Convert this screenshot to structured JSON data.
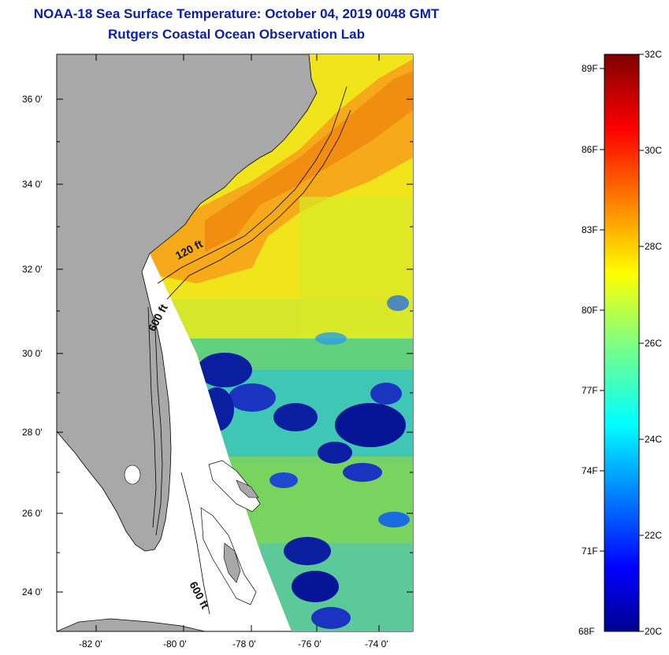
{
  "header": {
    "title": "NOAA-18 Sea Surface Temperature:  October 04, 2019 0048 GMT",
    "subtitle": "Rutgers Coastal Ocean Observation Lab"
  },
  "map": {
    "lat_labels": [
      "36 0'",
      "34 0'",
      "32 0'",
      "30 0'",
      "28 0'",
      "26 0'",
      "24 0'"
    ],
    "lon_labels": [
      "-82 0'",
      "-80 0'",
      "-78 0'",
      "-76 0'",
      "-74 0'"
    ],
    "depth_labels": [
      "120 ft",
      "600 ft",
      "600 ft"
    ],
    "land_color": "#a8a8a8",
    "ocean_nodata_color": "#ffffff"
  },
  "colorbar": {
    "fahrenheit_labels": [
      "89F",
      "86F",
      "83F",
      "80F",
      "77F",
      "74F",
      "71F",
      "68F"
    ],
    "celsius_labels": [
      "32C",
      "30C",
      "28C",
      "26C",
      "24C",
      "22C",
      "20C"
    ],
    "min_c": 20,
    "max_c": 32
  }
}
